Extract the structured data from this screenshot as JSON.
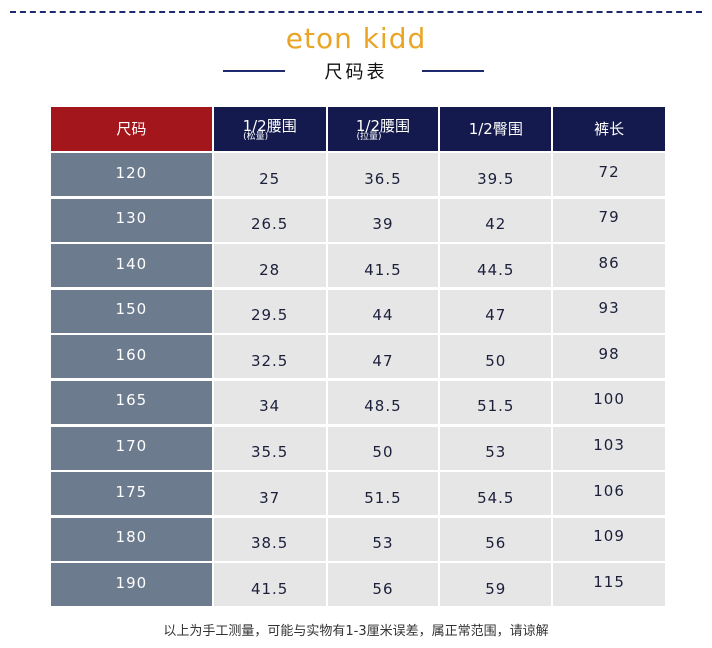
{
  "brand": "eton kidd",
  "subtitle": "尺码表",
  "table": {
    "headers": [
      {
        "main": "尺码",
        "sub": ""
      },
      {
        "main": "1/2腰围",
        "sub": "(松量)"
      },
      {
        "main": "1/2腰围",
        "sub": "(拉量)"
      },
      {
        "main": "1/2臀围",
        "sub": ""
      },
      {
        "main": "裤长",
        "sub": ""
      }
    ],
    "rows": [
      [
        "120",
        "25",
        "36.5",
        "39.5",
        "72"
      ],
      [
        "130",
        "26.5",
        "39",
        "42",
        "79"
      ],
      [
        "140",
        "28",
        "41.5",
        "44.5",
        "86"
      ],
      [
        "150",
        "29.5",
        "44",
        "47",
        "93"
      ],
      [
        "160",
        "32.5",
        "47",
        "50",
        "98"
      ],
      [
        "165",
        "34",
        "48.5",
        "51.5",
        "100"
      ],
      [
        "170",
        "35.5",
        "50",
        "53",
        "103"
      ],
      [
        "175",
        "37",
        "51.5",
        "54.5",
        "106"
      ],
      [
        "180",
        "38.5",
        "53",
        "56",
        "109"
      ],
      [
        "190",
        "41.5",
        "56",
        "59",
        "115"
      ]
    ]
  },
  "footnote": "以上为手工测量，可能与实物有1-3厘米误差，属正常范围，请谅解",
  "colors": {
    "brand": "#e9a526",
    "header_navy": "#141a4d",
    "header_red": "#a3161b",
    "size_column": "#6d7b8e",
    "cell_gray": "#e6e6e6"
  }
}
